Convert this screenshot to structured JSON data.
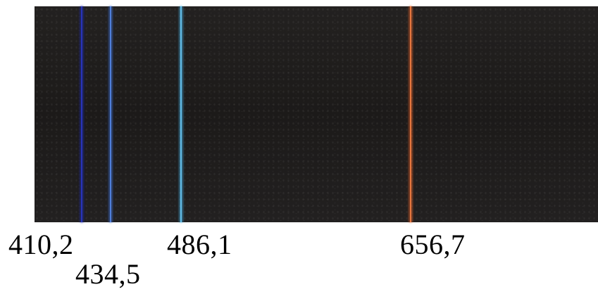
{
  "lines": [
    {
      "wavelength": "410,2",
      "color": "#1d2aa8",
      "glow": "#3a46d8"
    },
    {
      "wavelength": "434,5",
      "color": "#3f6fd0",
      "glow": "#6a96ec"
    },
    {
      "wavelength": "486,1",
      "color": "#4ab4e8",
      "glow": "#8fd6f6"
    },
    {
      "wavelength": "656,7",
      "color": "#e0622e",
      "glow": "#f29a5a"
    }
  ]
}
